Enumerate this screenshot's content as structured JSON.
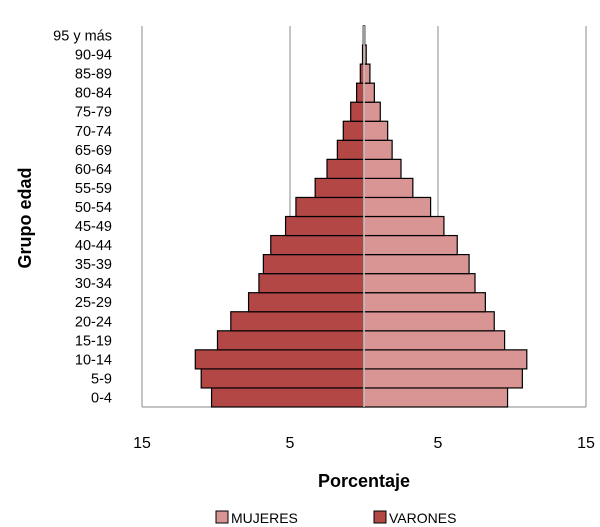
{
  "chart_data": {
    "type": "bar",
    "orientation": "horizontal",
    "subtype": "population-pyramid",
    "title": "",
    "xlabel": "Porcentaje",
    "ylabel": "Grupo edad",
    "xlim": [
      -15,
      15
    ],
    "x_ticks": [
      -15,
      -5,
      5,
      15
    ],
    "x_tick_labels": [
      "15",
      "5",
      "5",
      "15"
    ],
    "grid": "vertical",
    "legend_position": "bottom",
    "categories": [
      "0-4",
      "5-9",
      "10-14",
      "15-19",
      "20-24",
      "25-29",
      "30-34",
      "35-39",
      "40-44",
      "45-49",
      "50-54",
      "55-59",
      "60-64",
      "65-69",
      "70-74",
      "75-79",
      "80-84",
      "85-89",
      "90-94",
      "95 y más"
    ],
    "series": [
      {
        "name": "MUJERES",
        "color": "#d99594",
        "values": [
          9.7,
          10.7,
          11.0,
          9.5,
          8.8,
          8.2,
          7.5,
          7.1,
          6.3,
          5.4,
          4.5,
          3.3,
          2.5,
          1.9,
          1.6,
          1.1,
          0.7,
          0.4,
          0.15,
          0.05
        ]
      },
      {
        "name": "VARONES",
        "color": "#b24745",
        "values": [
          10.3,
          11.0,
          11.4,
          9.9,
          9.0,
          7.8,
          7.1,
          6.8,
          6.3,
          5.3,
          4.6,
          3.3,
          2.5,
          1.8,
          1.4,
          0.9,
          0.5,
          0.25,
          0.1,
          0.05
        ]
      }
    ]
  }
}
